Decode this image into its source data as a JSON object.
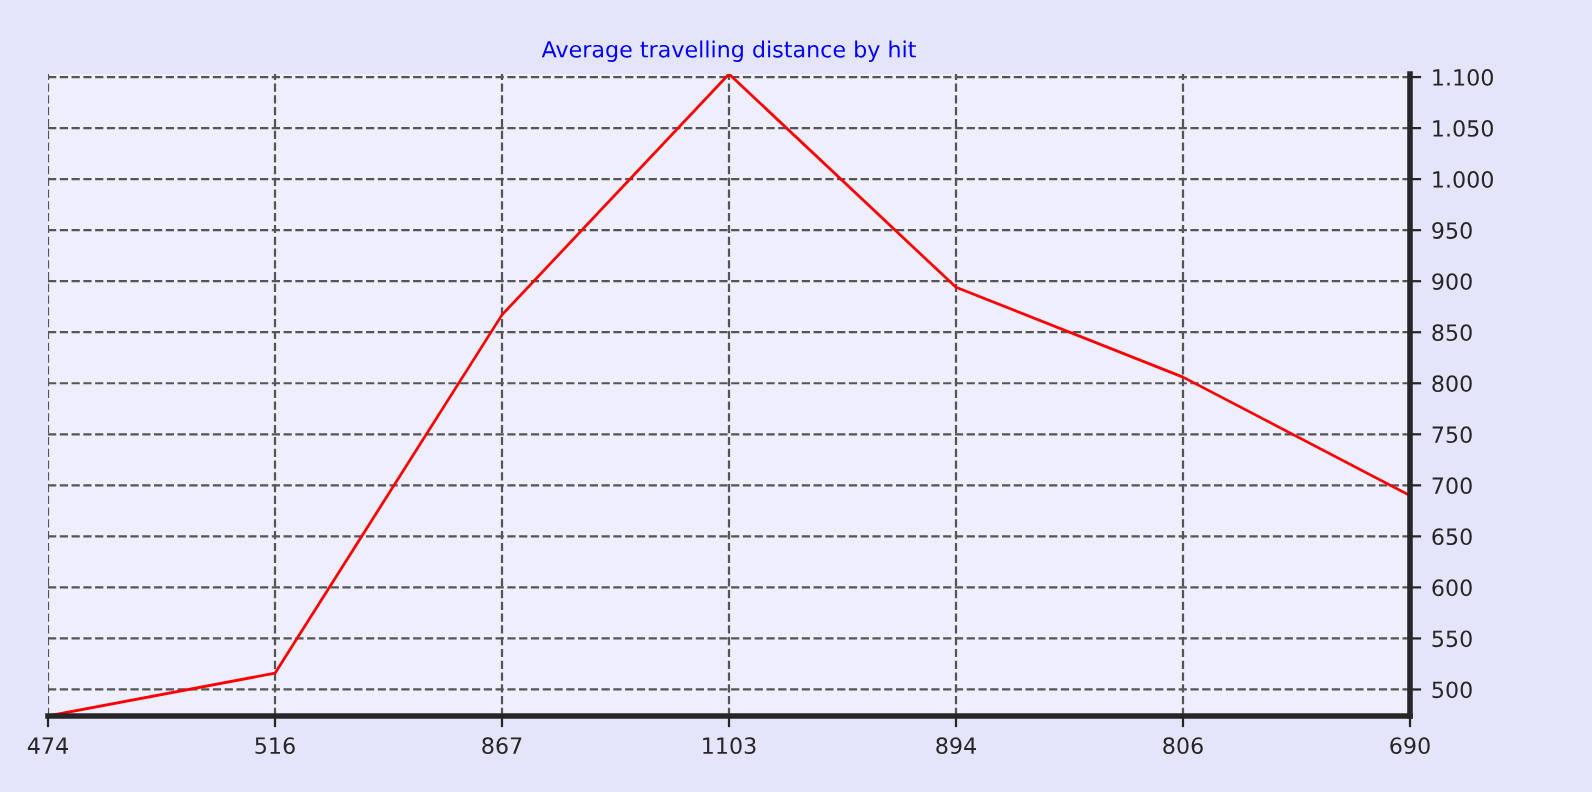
{
  "chart_data": {
    "type": "line",
    "title": "Average travelling distance by hit",
    "categories": [
      "474",
      "516",
      "867",
      "1103",
      "894",
      "806",
      "690"
    ],
    "series": [
      {
        "color": "#ff0000",
        "values": [
          474,
          516,
          867,
          1103,
          894,
          806,
          690
        ]
      }
    ],
    "ylim": [
      474,
      1103
    ],
    "yticks": [
      {
        "value": 500,
        "label": "500"
      },
      {
        "value": 550,
        "label": "550"
      },
      {
        "value": 600,
        "label": "600"
      },
      {
        "value": 650,
        "label": "650"
      },
      {
        "value": 700,
        "label": "700"
      },
      {
        "value": 750,
        "label": "750"
      },
      {
        "value": 800,
        "label": "800"
      },
      {
        "value": 850,
        "label": "850"
      },
      {
        "value": 900,
        "label": "900"
      },
      {
        "value": 950,
        "label": "950"
      },
      {
        "value": 1000,
        "label": "1.000"
      },
      {
        "value": 1050,
        "label": "1.050"
      },
      {
        "value": 1100,
        "label": "1.100"
      }
    ],
    "grid": true,
    "marker": "none",
    "line_style": "solid"
  }
}
